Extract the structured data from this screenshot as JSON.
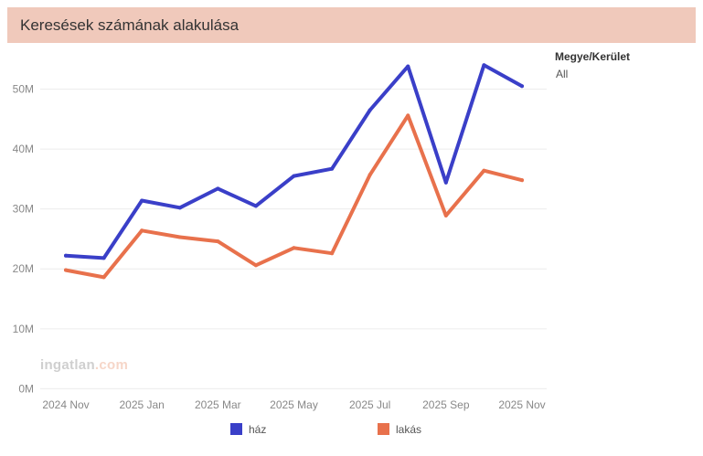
{
  "title": "Keresések számának alakulása",
  "filter": {
    "label": "Megye/Kerület",
    "value": "All"
  },
  "watermark": {
    "brand": "ingatlan",
    "suffix": ".com"
  },
  "chart_data": {
    "type": "line",
    "title": "Keresések számának alakulása",
    "xlabel": "",
    "ylabel": "",
    "ylim": [
      0,
      55
    ],
    "y_unit": "M",
    "yticks": [
      0,
      10,
      20,
      30,
      40,
      50
    ],
    "ytick_labels": [
      "0M",
      "10M",
      "20M",
      "30M",
      "40M",
      "50M"
    ],
    "x": [
      "2024 Nov",
      "2024 Dec",
      "2025 Jan",
      "2025 Feb",
      "2025 Mar",
      "2025 Apr",
      "2025 May",
      "2025 Jun",
      "2025 Jul",
      "2025 Aug",
      "2025 Sep",
      "2025 Oct",
      "2025 Nov"
    ],
    "xtick_labels": [
      "2024 Nov",
      "2025 Jan",
      "2025 Mar",
      "2025 May",
      "2025 Jul",
      "2025 Sep",
      "2025 Nov"
    ],
    "series": [
      {
        "name": "ház",
        "color": "#3a3fc8",
        "values": [
          22.2,
          21.8,
          31.4,
          30.2,
          33.4,
          30.5,
          35.5,
          36.7,
          46.5,
          53.8,
          34.4,
          54.0,
          50.5
        ]
      },
      {
        "name": "lakás",
        "color": "#e8714c",
        "values": [
          19.8,
          18.6,
          26.4,
          25.3,
          24.6,
          20.6,
          23.5,
          22.6,
          35.7,
          45.6,
          28.9,
          36.4,
          34.8
        ]
      }
    ],
    "legend": "bottom",
    "grid": true
  }
}
